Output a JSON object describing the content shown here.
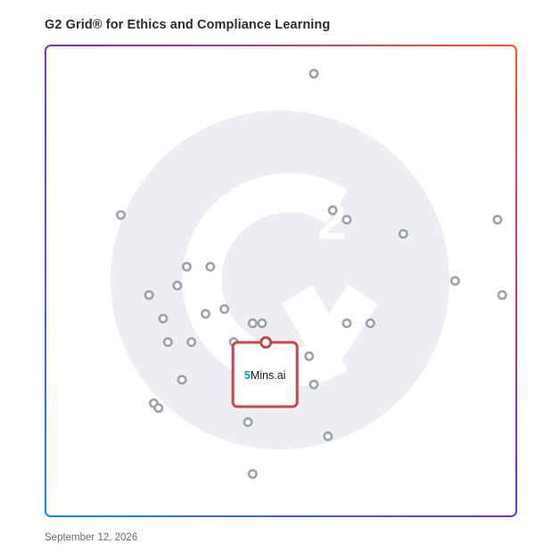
{
  "title": "G2 Grid® for Ethics and Compliance Learning",
  "date": "September 12, 2026",
  "watermark": "g2-logo-watermark",
  "colors": {
    "border_gradient_start": "#1e88e5",
    "border_gradient_mid": "#7b2fbe",
    "border_gradient_end": "#ff5722",
    "marker_stroke": "#9ea2ad",
    "highlight": "#c0484f",
    "watermark": "#eceef1",
    "brand_teal": "#00a8b5",
    "brand_dark": "#1a1a1a"
  },
  "chart_data": {
    "type": "scatter",
    "xlim": [
      0,
      100
    ],
    "ylim": [
      0,
      100
    ],
    "quadrant_divider": {
      "x": 50,
      "y": 50
    },
    "points": [
      {
        "x": 57,
        "y": 94
      },
      {
        "x": 16,
        "y": 64
      },
      {
        "x": 61,
        "y": 65
      },
      {
        "x": 64,
        "y": 63
      },
      {
        "x": 76,
        "y": 60
      },
      {
        "x": 96,
        "y": 63
      },
      {
        "x": 30,
        "y": 53
      },
      {
        "x": 35,
        "y": 53
      },
      {
        "x": 87,
        "y": 50
      },
      {
        "x": 28,
        "y": 49
      },
      {
        "x": 22,
        "y": 47
      },
      {
        "x": 97,
        "y": 47
      },
      {
        "x": 38,
        "y": 44
      },
      {
        "x": 34,
        "y": 43
      },
      {
        "x": 25,
        "y": 42
      },
      {
        "x": 44,
        "y": 41
      },
      {
        "x": 46,
        "y": 41
      },
      {
        "x": 64,
        "y": 41
      },
      {
        "x": 69,
        "y": 41
      },
      {
        "x": 31,
        "y": 37
      },
      {
        "x": 26,
        "y": 37
      },
      {
        "x": 40,
        "y": 37
      },
      {
        "x": 56,
        "y": 34
      },
      {
        "x": 57,
        "y": 28
      },
      {
        "x": 29,
        "y": 29
      },
      {
        "x": 23,
        "y": 24
      },
      {
        "x": 24,
        "y": 23
      },
      {
        "x": 43,
        "y": 20
      },
      {
        "x": 60,
        "y": 17
      },
      {
        "x": 44,
        "y": 9
      }
    ],
    "highlighted": {
      "x": 47,
      "y": 32,
      "label_accent": "5",
      "label_rest": "Mins.ai"
    }
  }
}
